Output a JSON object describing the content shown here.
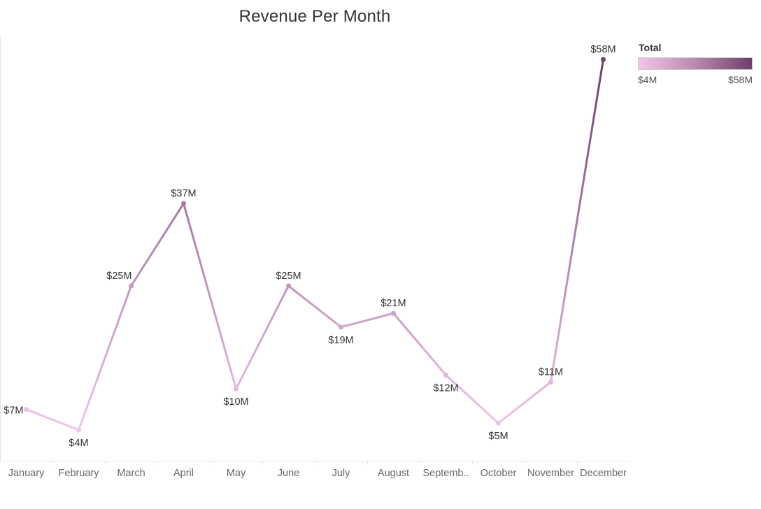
{
  "chart_data": {
    "type": "line",
    "title": "Revenue Per Month",
    "xlabel": "",
    "ylabel": "",
    "categories": [
      "January",
      "February",
      "March",
      "April",
      "May",
      "June",
      "July",
      "August",
      "Septemb..",
      "October",
      "November",
      "December"
    ],
    "series": [
      {
        "values": [
          7,
          4,
          25,
          37,
          10,
          25,
          19,
          21,
          12,
          5,
          11,
          58
        ],
        "labels": [
          "$7M",
          "$4M",
          "$25M",
          "$37M",
          "$10M",
          "$25M",
          "$19M",
          "$21M",
          "$12M",
          "$5M",
          "$11M",
          "$58M"
        ]
      }
    ],
    "ylim": [
      0,
      60
    ],
    "grid": false,
    "color_scale": {
      "title": "Total",
      "min_label": "$4M",
      "max_label": "$58M",
      "min_value": 4,
      "max_value": 58,
      "colors": [
        "#f1c6eb",
        "#b98aae",
        "#6e3f6c"
      ]
    },
    "legend_position": "top-right"
  }
}
